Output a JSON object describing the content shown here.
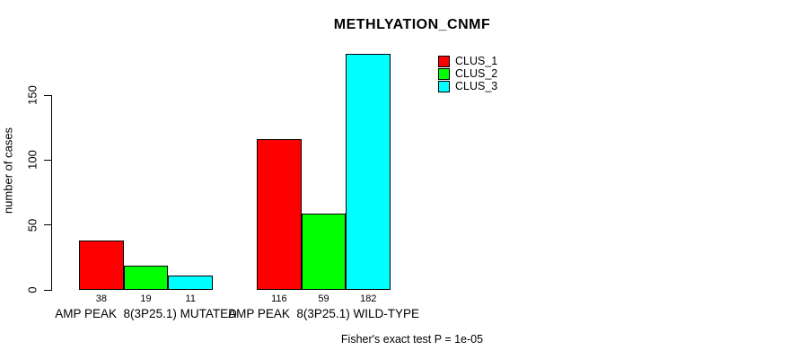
{
  "figure": {
    "background": "#FFFFFF",
    "text_color": "#000000"
  },
  "chart_data": {
    "type": "bar",
    "title": "METHLYATION_CNMF",
    "ylabel": "number of cases",
    "xlabel": "",
    "categories": [
      "AMP PEAK  8(3P25.1) MUTATED",
      "AMP PEAK  8(3P25.1) WILD-TYPE"
    ],
    "series": [
      {
        "name": "CLUS_1",
        "color": "#FF0000",
        "values": [
          38,
          116
        ]
      },
      {
        "name": "CLUS_2",
        "color": "#00FF00",
        "values": [
          19,
          59
        ]
      },
      {
        "name": "CLUS_3",
        "color": "#00FFFF",
        "values": [
          11,
          182
        ]
      }
    ],
    "yticks": [
      0,
      50,
      100,
      150
    ],
    "ylim": [
      0,
      150
    ],
    "grid": false,
    "legend_position": "top-right",
    "bar_border_color": "#000000",
    "annotation": "Fisher's exact test P = 1e-05"
  }
}
